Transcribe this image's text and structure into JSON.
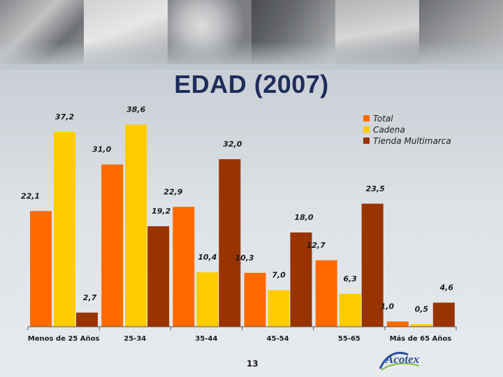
{
  "title": "EDAD (2007)",
  "page_number": "13",
  "logo_text": "Acotex",
  "colors": {
    "total": "#ff6a00",
    "cadena": "#ffcc00",
    "tienda": "#993300"
  },
  "chart_data": {
    "type": "bar",
    "title": "EDAD (2007)",
    "categories": [
      "Menos de 25 Años",
      "25-34",
      "35-44",
      "45-54",
      "55-65",
      "Más de 65 Años"
    ],
    "series": [
      {
        "name": "Total",
        "color": "#ff6a00",
        "values": [
          22.1,
          31.0,
          22.9,
          10.3,
          12.7,
          1.0
        ],
        "labels": [
          "22,1",
          "31,0",
          "22,9",
          "10,3",
          "12,7",
          "1,0"
        ]
      },
      {
        "name": "Cadena",
        "color": "#ffcc00",
        "values": [
          37.2,
          38.6,
          10.4,
          7.0,
          6.3,
          0.5
        ],
        "labels": [
          "37,2",
          "38,6",
          "10,4",
          "7,0",
          "6,3",
          "0,5"
        ]
      },
      {
        "name": "Tienda  Multimarca",
        "color": "#993300",
        "values": [
          2.7,
          19.2,
          32.0,
          18.0,
          23.5,
          4.6
        ],
        "labels": [
          "2,7",
          "19,2",
          "32,0",
          "18,0",
          "23,5",
          "4,6"
        ]
      }
    ],
    "ylim": [
      0,
      40
    ],
    "grid": false,
    "legend": "top-right"
  }
}
